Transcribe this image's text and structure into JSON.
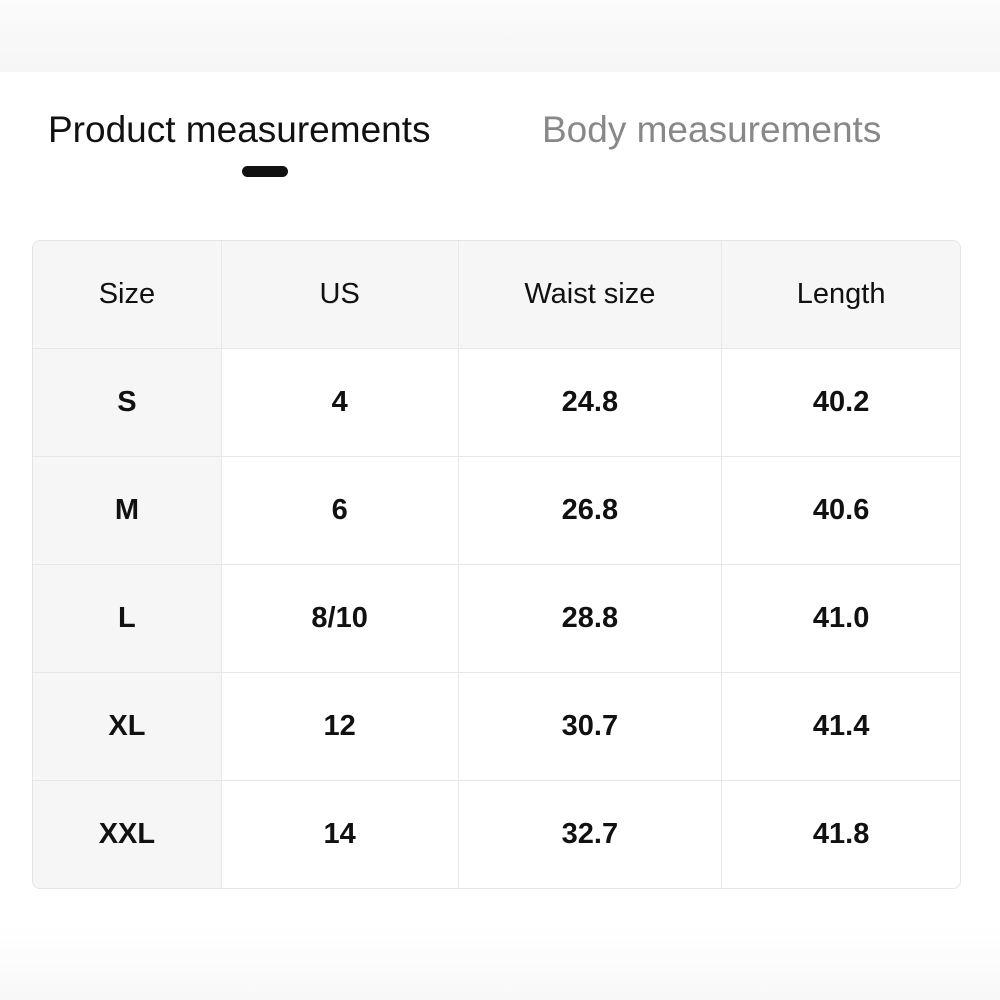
{
  "tabs": [
    {
      "label": "Product measurements",
      "active": true
    },
    {
      "label": "Body measurements",
      "active": false
    }
  ],
  "table": {
    "headers": [
      "Size",
      "US",
      "Waist size",
      "Length"
    ],
    "rows": [
      [
        "S",
        "4",
        "24.8",
        "40.2"
      ],
      [
        "M",
        "6",
        "26.8",
        "40.6"
      ],
      [
        "L",
        "8/10",
        "28.8",
        "41.0"
      ],
      [
        "XL",
        "12",
        "30.7",
        "41.4"
      ],
      [
        "XXL",
        "14",
        "32.7",
        "41.8"
      ]
    ]
  }
}
